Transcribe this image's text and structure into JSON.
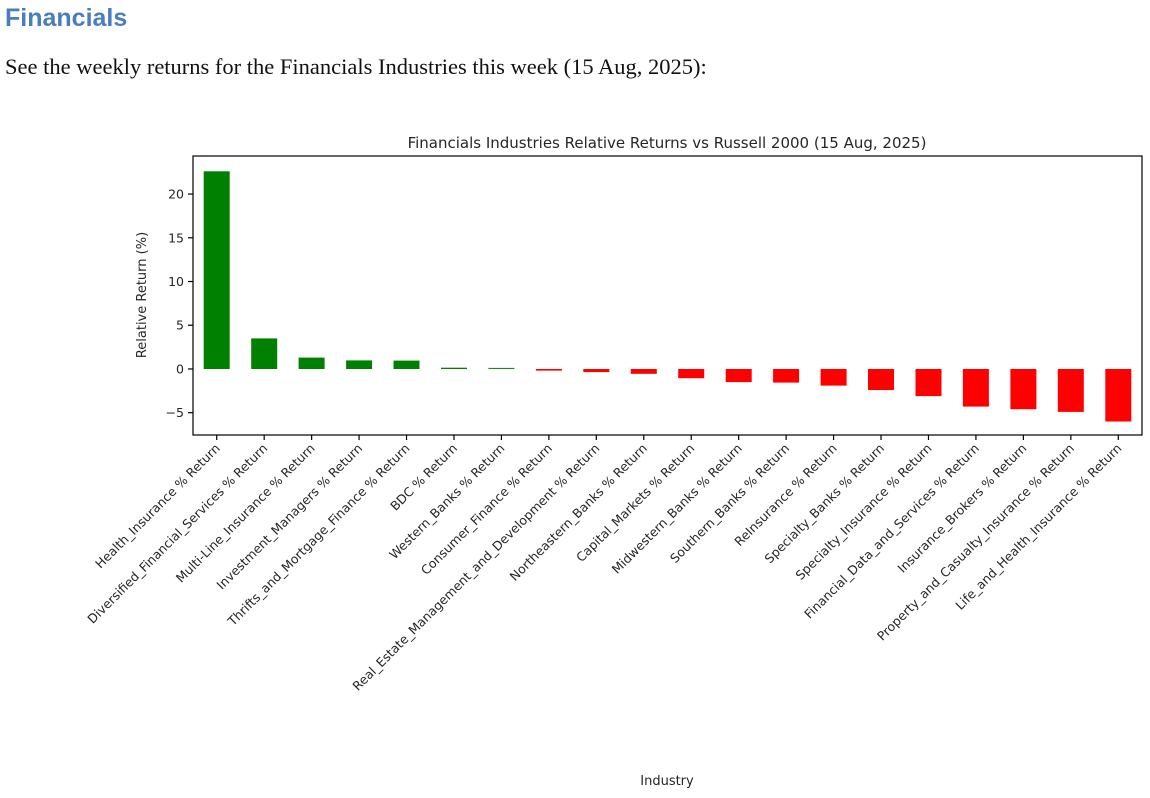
{
  "header": {
    "title": "Financials",
    "title_color": "#4a7cbe",
    "subtitle": "See the weekly returns for the Financials Industries this week (15 Aug, 2025):"
  },
  "chart_data": {
    "type": "bar",
    "title": "Financials Industries Relative Returns vs Russell 2000 (15 Aug, 2025)",
    "xlabel": "Industry",
    "ylabel": "Relative Return (%)",
    "categories": [
      "Health_Insurance % Return",
      "Diversified_Financial_Services % Return",
      "Multi-Line_Insurance % Return",
      "Investment_Managers % Return",
      "Thrifts_and_Mortgage_Finance % Return",
      "BDC % Return",
      "Western_Banks % Return",
      "Consumer_Finance % Return",
      "Real_Estate_Management_and_Development % Return",
      "Northeastern_Banks % Return",
      "Capital_Markets % Return",
      "Midwestern_Banks % Return",
      "Southern_Banks % Return",
      "ReInsurance % Return",
      "Specialty_Banks % Return",
      "Specialty_Insurance % Return",
      "Financial_Data_and_Services % Return",
      "Insurance_Brokers % Return",
      "Property_and_Casualty_Insurance % Return",
      "Life_and_Health_Insurance % Return"
    ],
    "values": [
      22.6,
      3.5,
      1.3,
      0.98,
      0.96,
      0.15,
      0.12,
      -0.18,
      -0.35,
      -0.55,
      -1.05,
      -1.5,
      -1.55,
      -1.9,
      -2.4,
      -3.1,
      -4.3,
      -4.6,
      -4.9,
      -6.0
    ],
    "yticks": [
      20,
      15,
      10,
      5,
      0,
      -5
    ],
    "ylim": [
      -7.55,
      24.35
    ],
    "grid": false,
    "legend": "none",
    "positive_color": "#008000",
    "negative_color": "#ff0000",
    "spine_color": "#000000",
    "x_label_rotation_deg": 45
  }
}
